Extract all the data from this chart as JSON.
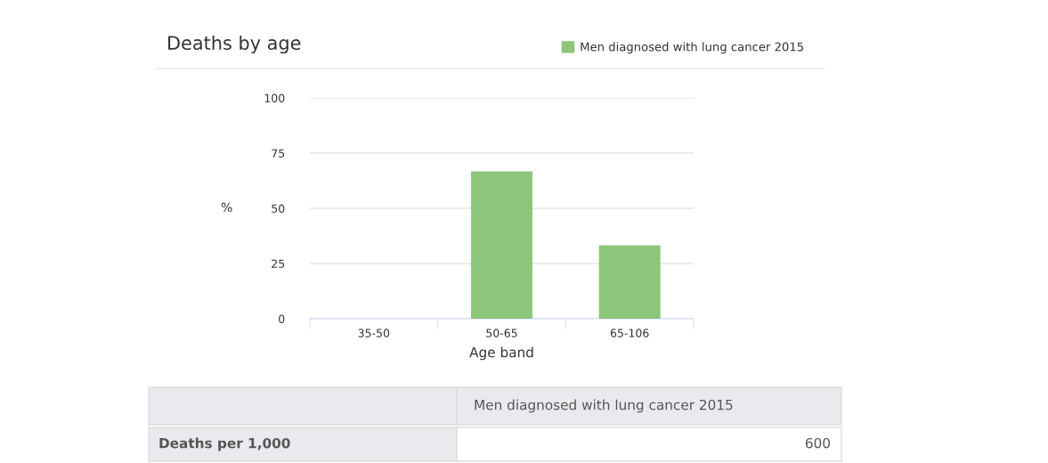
{
  "chart_data": {
    "type": "bar",
    "title": "Deaths by age",
    "xlabel": "Age band",
    "ylabel": "%",
    "categories": [
      "35-50",
      "50-65",
      "65-106"
    ],
    "series": [
      {
        "name": "Men diagnosed with lung cancer 2015",
        "color": "#8dc67b",
        "values": [
          0,
          66.7,
          33.3
        ]
      }
    ],
    "ylim": [
      0,
      100
    ],
    "yticks": [
      0,
      25,
      50,
      75,
      100
    ],
    "grid": "y",
    "legend": "top right",
    "annotations": [
      "Men diagnosed with lung cancer 2015",
      "Deaths per 1,000",
      "600"
    ]
  }
}
